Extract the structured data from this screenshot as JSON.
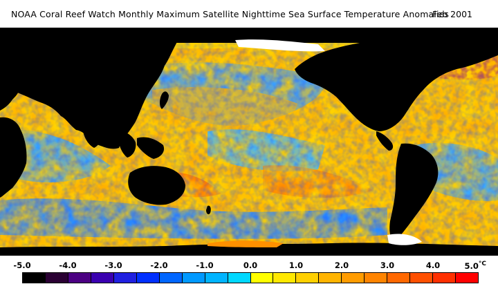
{
  "header": {
    "title": "NOAA Coral Reef Watch Monthly Maximum Satellite Nighttime Sea Surface Temperature Anomalies",
    "date": "Feb 2001"
  },
  "map": {
    "variable": "sea surface temperature anomaly",
    "unit": "°C",
    "land_color": "#000000",
    "ice_color": "#ffffff"
  },
  "legend": {
    "ticks": [
      "-5.0",
      "-4.0",
      "-3.0",
      "-2.0",
      "-1.0",
      "0.0",
      "1.0",
      "2.0",
      "3.0",
      "4.0",
      "5.0"
    ],
    "unit": "°C",
    "colors": [
      "#000000",
      "#2a0033",
      "#4b0082",
      "#3a00b0",
      "#2020e0",
      "#0030ff",
      "#0066ff",
      "#0099ff",
      "#00b4ff",
      "#00d8ff",
      "#ffff00",
      "#ffe800",
      "#ffd000",
      "#ffb400",
      "#ff9c00",
      "#ff8400",
      "#ff6800",
      "#ff5000",
      "#ff3000",
      "#ff0000"
    ]
  }
}
